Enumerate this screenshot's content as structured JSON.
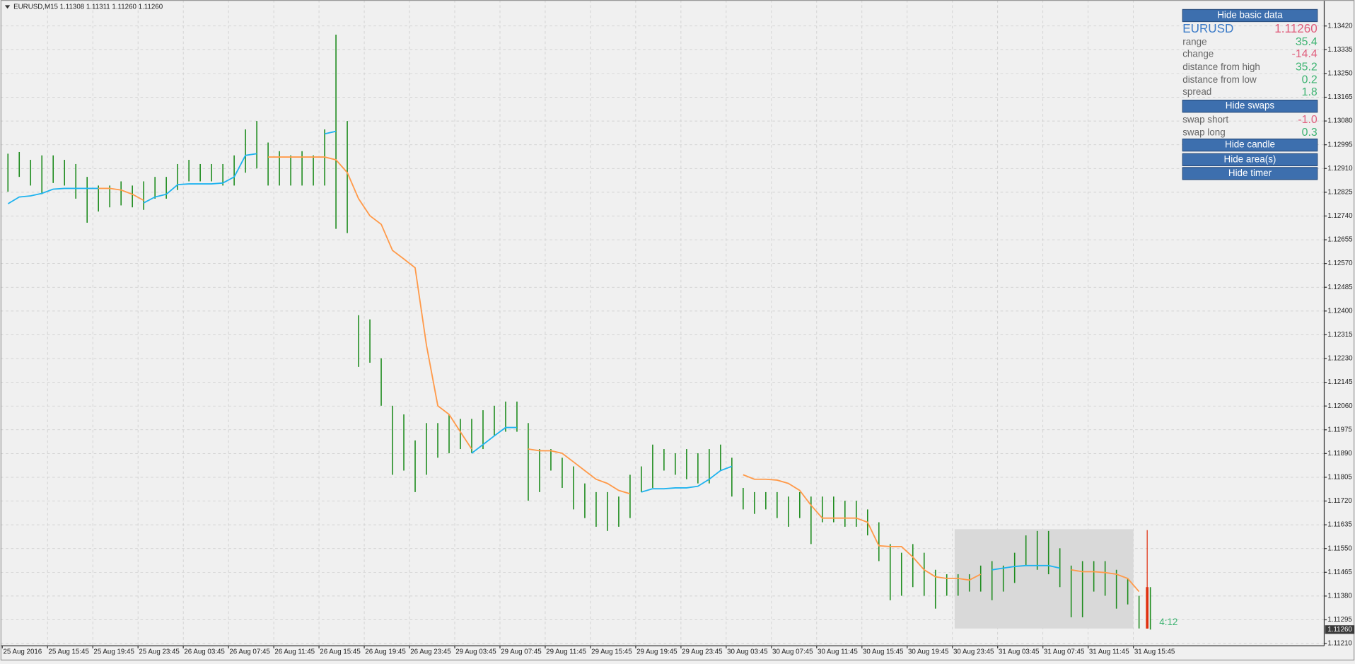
{
  "chart_data": {
    "type": "range_bar",
    "title": "EURUSD,M15  1.11308 1.11311 1.11260 1.11260",
    "color": "#1e8c1e",
    "grid": true,
    "ylim": [
      1.11202,
      1.13513
    ],
    "yticks": [
      {
        "value": 1.1121,
        "label": "1.11210"
      },
      1.11295,
      {
        "value": 1.1138,
        "label": "1.11380"
      },
      1.11465,
      {
        "value": 1.1155,
        "label": "1.11550"
      },
      1.11635,
      {
        "value": 1.1172,
        "label": "1.11720"
      },
      1.11805,
      {
        "value": 1.1189,
        "label": "1.11890"
      },
      1.11975,
      {
        "value": 1.1206,
        "label": "1.12060"
      },
      1.12145,
      {
        "value": 1.1223,
        "label": "1.12230"
      },
      1.12315,
      {
        "value": 1.124,
        "label": "1.12400"
      },
      1.12485,
      {
        "value": 1.1257,
        "label": "1.12570"
      },
      1.12655,
      {
        "value": 1.1274,
        "label": "1.12740"
      },
      1.12825,
      {
        "value": 1.1291,
        "label": "1.12910"
      },
      1.12995,
      {
        "value": 1.1308,
        "label": "1.13080"
      },
      1.13165,
      {
        "value": 1.1325,
        "label": "1.13250"
      },
      1.13335,
      {
        "value": 1.1342,
        "label": "1.13420"
      }
    ],
    "last_price": {
      "value": 1.1126,
      "label": "1.11260"
    },
    "timer": "4:12",
    "categories": [
      "25 Aug 2016",
      null,
      null,
      null,
      "25 Aug 15:45",
      null,
      null,
      null,
      "25 Aug 19:45",
      null,
      null,
      null,
      "25 Aug 23:45",
      null,
      null,
      null,
      "26 Aug 03:45",
      null,
      null,
      null,
      "26 Aug 07:45",
      null,
      null,
      null,
      "26 Aug 11:45",
      null,
      null,
      null,
      "26 Aug 15:45",
      null,
      null,
      null,
      "26 Aug 19:45",
      null,
      null,
      null,
      "26 Aug 23:45",
      null,
      null,
      null,
      "29 Aug 03:45",
      null,
      null,
      null,
      "29 Aug 07:45",
      null,
      null,
      null,
      "29 Aug 11:45",
      null,
      null,
      null,
      "29 Aug 15:45",
      null,
      null,
      null,
      "29 Aug 19:45",
      null,
      null,
      null,
      "29 Aug 23:45",
      null,
      null,
      null,
      "30 Aug 03:45",
      null,
      null,
      null,
      "30 Aug 07:45",
      null,
      null,
      null,
      "30 Aug 11:45",
      null,
      null,
      null,
      "30 Aug 15:45",
      null,
      null,
      null,
      "30 Aug 19:45",
      null,
      null,
      null,
      "30 Aug 23:45",
      null,
      null,
      null,
      "31 Aug 03:45",
      null,
      null,
      null,
      "31 Aug 07:45",
      null,
      null,
      null,
      "31 Aug 11:45",
      null,
      null,
      null,
      "31 Aug 15:45",
      null,
      null,
      null
    ],
    "high": [
      1.12963,
      1.12969,
      1.12941,
      1.12957,
      1.12957,
      1.12941,
      1.12926,
      1.1288,
      1.12849,
      1.12849,
      1.12864,
      1.12849,
      1.12864,
      1.1288,
      1.1288,
      1.12926,
      1.12941,
      1.12926,
      1.12926,
      1.12926,
      1.12957,
      1.1305,
      1.1308,
      1.13003,
      1.12972,
      1.12957,
      1.12972,
      1.12957,
      1.1305,
      1.13389,
      1.1308,
      1.12385,
      1.1237,
      1.12231,
      1.12061,
      1.1203,
      1.11937,
      1.11999,
      1.11999,
      1.1203,
      1.12014,
      1.12014,
      1.12045,
      1.12061,
      1.12076,
      1.12076,
      1.11999,
      1.11906,
      1.11906,
      1.11875,
      1.11844,
      1.11783,
      1.11752,
      1.11752,
      1.11736,
      1.11814,
      1.11844,
      1.11922,
      1.11906,
      1.11891,
      1.11906,
      1.11891,
      1.11906,
      1.11922,
      1.11875,
      1.11767,
      1.11752,
      1.11752,
      1.11752,
      1.11736,
      1.11752,
      1.11736,
      1.11736,
      1.11736,
      1.11721,
      1.11721,
      1.1169,
      1.11644,
      1.11566,
      1.11535,
      1.11566,
      1.11535,
      1.11474,
      1.11458,
      1.11458,
      1.11458,
      1.11489,
      1.11505,
      1.11489,
      1.11535,
      1.11597,
      1.11613,
      1.11613,
      1.11551,
      1.11489,
      1.11505,
      1.11505,
      1.11505,
      1.11474,
      1.11443,
      1.11381,
      1.11412,
      null,
      null
    ],
    "low": [
      1.12827,
      1.1288,
      1.12849,
      1.12818,
      1.12858,
      1.12849,
      1.12802,
      1.12716,
      1.12756,
      1.12771,
      1.12778,
      1.12771,
      1.12762,
      1.12802,
      1.12802,
      1.12833,
      1.12864,
      1.12864,
      1.12864,
      1.12849,
      1.12849,
      1.12895,
      1.1291,
      1.12849,
      1.12849,
      1.12849,
      1.12849,
      1.12849,
      1.12849,
      1.12694,
      1.12679,
      1.122,
      1.12215,
      1.12061,
      1.11814,
      1.11829,
      1.11752,
      1.11814,
      1.11875,
      1.11891,
      1.11906,
      1.11891,
      1.11906,
      1.11953,
      1.11968,
      1.11968,
      1.11721,
      1.11752,
      1.11829,
      1.11767,
      1.1169,
      1.11659,
      1.11628,
      1.11613,
      1.11628,
      1.11659,
      1.11752,
      1.11767,
      1.11829,
      1.11814,
      1.11798,
      1.11783,
      1.11783,
      1.11829,
      1.11736,
      1.1169,
      1.11674,
      1.1169,
      1.11659,
      1.11628,
      1.11659,
      1.11566,
      1.11644,
      1.11644,
      1.11628,
      1.11628,
      1.11597,
      1.11505,
      1.11365,
      1.11381,
      1.11412,
      1.11381,
      1.11335,
      1.11381,
      1.11381,
      1.11396,
      1.11396,
      1.11365,
      1.11396,
      1.11427,
      1.11489,
      1.11474,
      1.11458,
      1.11412,
      1.11304,
      1.11304,
      1.11396,
      1.11381,
      1.11335,
      1.1135,
      1.11264,
      1.1126,
      null,
      null
    ],
    "lines": [
      {
        "color": "#ff9a4a",
        "values": [
          null,
          null,
          null,
          null,
          null,
          null,
          null,
          1.12839,
          1.12839,
          1.12839,
          1.12833,
          1.12818,
          1.12796,
          null,
          null,
          null,
          null,
          null,
          null,
          null,
          null,
          null,
          null,
          1.12951,
          1.12951,
          1.12951,
          1.12951,
          1.12951,
          1.12951,
          1.12941,
          1.12895,
          1.12802,
          1.12741,
          1.1271,
          1.12617,
          1.12586,
          1.12555,
          1.12277,
          1.12061,
          1.1203,
          1.11968,
          1.11906,
          null,
          null,
          null,
          null,
          1.11906,
          1.119,
          1.119,
          1.11891,
          1.1186,
          1.11829,
          1.11798,
          1.11783,
          1.11758,
          1.11746,
          null,
          null,
          null,
          null,
          null,
          null,
          null,
          null,
          null,
          1.11814,
          1.11798,
          1.11798,
          1.11795,
          1.11783,
          1.11758,
          1.11705,
          1.11659,
          1.11659,
          1.11659,
          1.11659,
          1.11644,
          1.1156,
          1.11557,
          1.11557,
          1.1152,
          1.11474,
          1.11449,
          1.11443,
          1.11443,
          1.11437,
          1.11458,
          null,
          null,
          null,
          null,
          null,
          null,
          null,
          1.11474,
          1.11467,
          1.11467,
          1.11464,
          1.11458,
          1.11443,
          1.11396,
          null,
          null,
          null
        ]
      },
      {
        "color": "#1fb3ef",
        "values": [
          1.12784,
          1.12808,
          1.12812,
          1.12821,
          1.12836,
          1.12839,
          1.12839,
          1.12839,
          1.12839,
          null,
          null,
          null,
          1.12787,
          1.12808,
          1.12818,
          1.12852,
          1.12855,
          1.12855,
          1.12855,
          1.12858,
          1.1288,
          1.12957,
          1.12963,
          null,
          null,
          null,
          null,
          null,
          1.13034,
          1.13043,
          null,
          null,
          null,
          null,
          null,
          null,
          null,
          null,
          null,
          null,
          null,
          1.11891,
          1.11922,
          1.11953,
          1.11983,
          1.11983,
          null,
          null,
          null,
          null,
          null,
          null,
          null,
          null,
          null,
          null,
          1.11752,
          1.11764,
          1.11764,
          1.11767,
          1.11767,
          1.11773,
          1.11798,
          1.11829,
          1.11844,
          null,
          null,
          null,
          null,
          null,
          null,
          null,
          null,
          null,
          null,
          null,
          null,
          null,
          null,
          null,
          null,
          null,
          null,
          null,
          null,
          null,
          null,
          1.11474,
          1.1148,
          1.11486,
          1.11489,
          1.11489,
          1.11489,
          1.1148,
          null,
          null,
          null,
          null,
          null,
          null,
          null,
          null,
          null,
          null
        ]
      }
    ]
  },
  "panel": {
    "items": [
      {
        "button": "Hide basic data"
      },
      {
        "label": "EURUSD",
        "value": "1.11260",
        "label_color": "#3b7bc8",
        "color": "#e0607e",
        "big": true
      },
      {
        "label": "range",
        "value": "35.4",
        "color": "#3cb371"
      },
      {
        "label": "change",
        "value": "-14.4",
        "color": "#e0607e"
      },
      {
        "label": "distance from high",
        "value": "35.2",
        "color": "#3cb371"
      },
      {
        "label": "distance from low",
        "value": "0.2",
        "color": "#3cb371"
      },
      {
        "label": "spread",
        "value": "1.8",
        "color": "#3cb371"
      },
      {
        "button": "Hide swaps"
      },
      {
        "label": "swap short",
        "value": "-1.0",
        "color": "#e0607e"
      },
      {
        "label": "swap long",
        "value": "0.3",
        "color": "#3cb371"
      },
      {
        "button": "Hide candle"
      },
      {
        "button": "Hide area(s)"
      },
      {
        "button": "Hide timer"
      }
    ]
  }
}
